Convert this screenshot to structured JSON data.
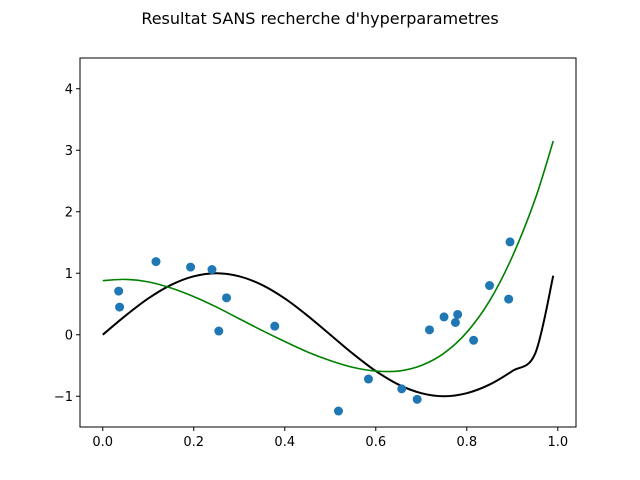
{
  "chart_data": {
    "type": "scatter",
    "title": "Resultat SANS recherche d'hyperparametres",
    "xlabel": "",
    "ylabel": "",
    "xlim": [
      -0.05,
      1.04
    ],
    "ylim": [
      -1.5,
      4.5
    ],
    "x_ticks": [
      0.0,
      0.2,
      0.4,
      0.6,
      0.8,
      1.0
    ],
    "x_tick_labels": [
      "0.0",
      "0.2",
      "0.4",
      "0.6",
      "0.8",
      "1.0"
    ],
    "y_ticks": [
      -1,
      0,
      1,
      2,
      3,
      4
    ],
    "y_tick_labels": [
      "−1",
      "0",
      "1",
      "2",
      "3",
      "4"
    ],
    "grid": false,
    "legend": "none",
    "points": {
      "color": "#1f77b4",
      "x": [
        0.035,
        0.037,
        0.117,
        0.193,
        0.24,
        0.255,
        0.272,
        0.378,
        0.518,
        0.584,
        0.657,
        0.691,
        0.718,
        0.75,
        0.775,
        0.78,
        0.815,
        0.85,
        0.892,
        0.895
      ],
      "y": [
        0.71,
        0.45,
        1.19,
        1.1,
        1.06,
        0.06,
        0.6,
        0.14,
        -1.24,
        -0.72,
        -0.88,
        -1.05,
        0.08,
        0.29,
        0.2,
        0.33,
        -0.09,
        0.8,
        0.58,
        1.51
      ]
    },
    "lines": [
      {
        "color": "#000000",
        "width": 2,
        "x": [
          0.0,
          0.05,
          0.1,
          0.15,
          0.2,
          0.25,
          0.3,
          0.35,
          0.4,
          0.45,
          0.5,
          0.55,
          0.6,
          0.65,
          0.7,
          0.75,
          0.8,
          0.85,
          0.9,
          0.95,
          0.99
        ],
        "y": [
          0.0,
          0.31,
          0.59,
          0.81,
          0.95,
          1.0,
          0.95,
          0.81,
          0.59,
          0.31,
          0.0,
          -0.31,
          -0.59,
          -0.81,
          -0.95,
          -1.0,
          -0.95,
          -0.81,
          -0.59,
          -0.31,
          0.96
        ]
      },
      {
        "color": "#008000",
        "width": 1.6,
        "x": [
          0.0,
          0.05,
          0.1,
          0.15,
          0.2,
          0.25,
          0.3,
          0.35,
          0.4,
          0.45,
          0.5,
          0.55,
          0.6,
          0.65,
          0.7,
          0.75,
          0.8,
          0.85,
          0.9,
          0.95,
          0.99
        ],
        "y": [
          0.88,
          0.9,
          0.86,
          0.76,
          0.62,
          0.45,
          0.26,
          0.07,
          -0.11,
          -0.28,
          -0.42,
          -0.53,
          -0.59,
          -0.59,
          -0.5,
          -0.3,
          0.04,
          0.55,
          1.27,
          2.2,
          3.15
        ]
      }
    ]
  }
}
